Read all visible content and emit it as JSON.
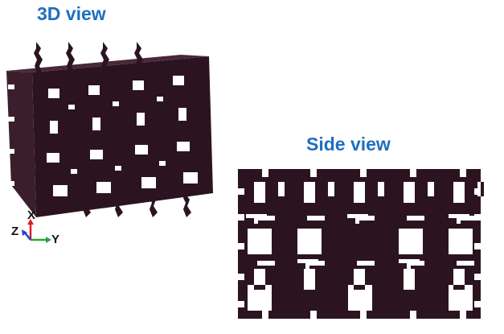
{
  "labels": {
    "view_3d": "3D view",
    "view_side": "Side view"
  },
  "axes": {
    "x": "X",
    "y": "Y",
    "z": "Z"
  },
  "colors": {
    "title": "#1f6fc0",
    "lattice": "#2b1420",
    "axis_x": "#d42020",
    "axis_y": "#2fa33a",
    "axis_z": "#2a3fd0"
  }
}
